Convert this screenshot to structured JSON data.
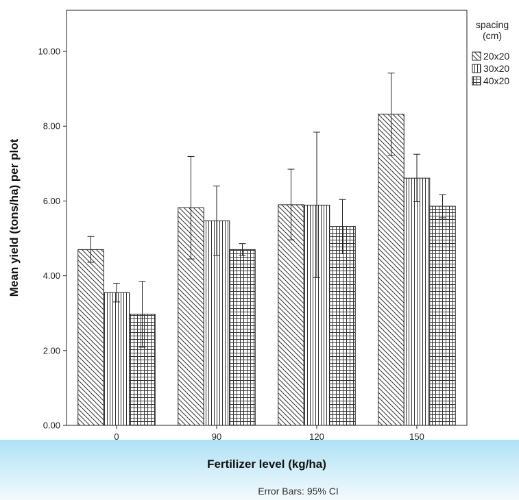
{
  "chart_data": {
    "type": "bar",
    "title": "",
    "xlabel": "Fertilizer level (kg/ha)",
    "ylabel": "Mean yield  (tons/ha) per plot",
    "categories": [
      "0",
      "90",
      "120",
      "150"
    ],
    "y_ticks": [
      "0.00",
      "2.00",
      "4.00",
      "6.00",
      "8.00",
      "10.00"
    ],
    "ylim": [
      0,
      11.1
    ],
    "grid": false,
    "legend": {
      "title_line1": "spacing",
      "title_line2": "(cm)",
      "placement": "right-outside-top"
    },
    "series": [
      {
        "name": "20x20",
        "pattern": "diagonal-hatch",
        "values": [
          4.7,
          5.82,
          5.9,
          8.32
        ],
        "ci_low": [
          4.36,
          4.45,
          4.96,
          7.22
        ],
        "ci_high": [
          5.05,
          7.19,
          6.85,
          9.42
        ]
      },
      {
        "name": "30x20",
        "pattern": "vertical-stripes",
        "values": [
          3.55,
          5.47,
          5.89,
          6.61
        ],
        "ci_low": [
          3.3,
          4.54,
          3.95,
          5.98
        ],
        "ci_high": [
          3.8,
          6.4,
          7.84,
          7.25
        ]
      },
      {
        "name": "40x20",
        "pattern": "grid-crosshatch",
        "values": [
          2.97,
          4.7,
          5.32,
          5.86
        ],
        "ci_low": [
          2.09,
          4.54,
          4.59,
          5.55
        ],
        "ci_high": [
          3.85,
          4.86,
          6.04,
          6.17
        ]
      }
    ],
    "footnote": "Error Bars: 95% CI"
  }
}
